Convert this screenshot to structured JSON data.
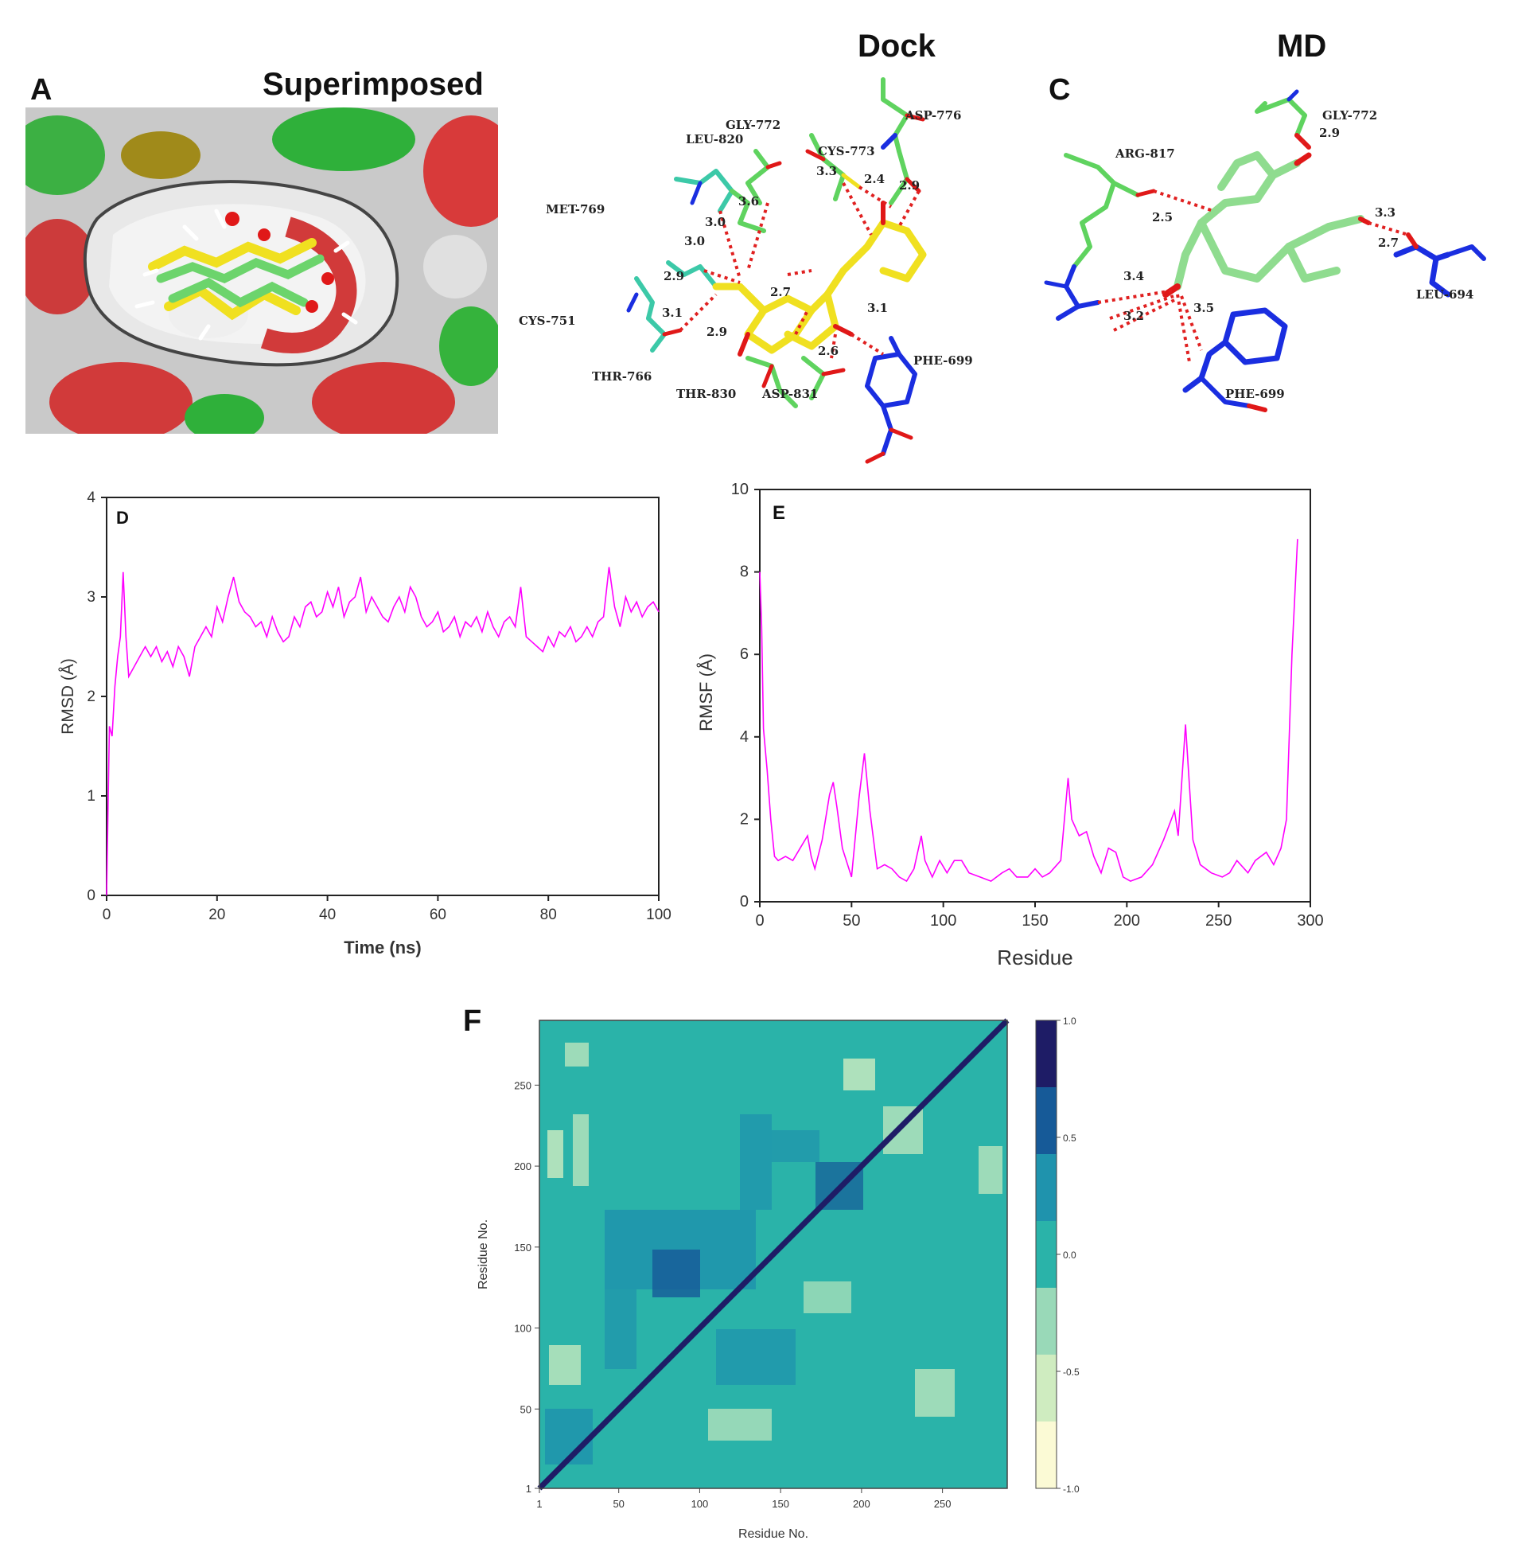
{
  "figure": {
    "panel_a": {
      "letter": "A",
      "title": "Superimposed"
    },
    "panel_b": {
      "title": "Dock",
      "residues": [
        "GLY-772",
        "LEU-820",
        "CYS-773",
        "ASP-776",
        "MET-769",
        "CYS-751",
        "THR-766",
        "THR-830",
        "ASP-831",
        "PHE-699"
      ],
      "distances": [
        "3.3",
        "2.4",
        "2.9",
        "3.6",
        "3.0",
        "3.0",
        "2.9",
        "3.1",
        "2.7",
        "2.9",
        "2.6",
        "3.1"
      ]
    },
    "panel_c": {
      "letter": "C",
      "title": "MD",
      "residues": [
        "GLY-772",
        "ARG-817",
        "LEU-694",
        "PHE-699"
      ],
      "distances": [
        "2.9",
        "2.5",
        "3.3",
        "2.7",
        "3.4",
        "3.2",
        "3.5"
      ]
    },
    "colors": {
      "carbon_green": "#5fd35f",
      "carbon_yellow": "#f0e020",
      "nitrogen": "#1a2ee0",
      "oxygen": "#e01818",
      "hbond": "#e02020",
      "trace": "#ff00ff"
    }
  },
  "chart_data": [
    {
      "panel": "D",
      "type": "line",
      "xlabel": "Time (ns)",
      "ylabel": "RMSD (Å)",
      "xlim": [
        0,
        100
      ],
      "ylim": [
        0,
        4
      ],
      "xticks": [
        "0",
        "20",
        "40",
        "60",
        "80",
        "100"
      ],
      "yticks": [
        "0",
        "1",
        "2",
        "3",
        "4"
      ],
      "color": "#ff00ff",
      "x": [
        0,
        0.5,
        1,
        1.5,
        2,
        2.5,
        3,
        3.5,
        4,
        5,
        6,
        7,
        8,
        9,
        10,
        11,
        12,
        13,
        14,
        15,
        16,
        17,
        18,
        19,
        20,
        21,
        22,
        23,
        24,
        25,
        26,
        27,
        28,
        29,
        30,
        31,
        32,
        33,
        34,
        35,
        36,
        37,
        38,
        39,
        40,
        41,
        42,
        43,
        44,
        45,
        46,
        47,
        48,
        49,
        50,
        51,
        52,
        53,
        54,
        55,
        56,
        57,
        58,
        59,
        60,
        61,
        62,
        63,
        64,
        65,
        66,
        67,
        68,
        69,
        70,
        71,
        72,
        73,
        74,
        75,
        76,
        77,
        78,
        79,
        80,
        81,
        82,
        83,
        84,
        85,
        86,
        87,
        88,
        89,
        90,
        91,
        92,
        93,
        94,
        95,
        96,
        97,
        98,
        99,
        100
      ],
      "y": [
        0,
        1.7,
        1.6,
        2.1,
        2.4,
        2.6,
        3.25,
        2.6,
        2.2,
        2.3,
        2.4,
        2.5,
        2.4,
        2.5,
        2.35,
        2.45,
        2.3,
        2.5,
        2.4,
        2.2,
        2.5,
        2.6,
        2.7,
        2.6,
        2.9,
        2.75,
        3.0,
        3.2,
        2.95,
        2.85,
        2.8,
        2.7,
        2.75,
        2.6,
        2.8,
        2.65,
        2.55,
        2.6,
        2.8,
        2.7,
        2.9,
        2.95,
        2.8,
        2.85,
        3.05,
        2.9,
        3.1,
        2.8,
        2.95,
        3.0,
        3.2,
        2.85,
        3.0,
        2.9,
        2.8,
        2.75,
        2.9,
        3.0,
        2.85,
        3.1,
        3.0,
        2.8,
        2.7,
        2.75,
        2.85,
        2.65,
        2.7,
        2.8,
        2.6,
        2.75,
        2.7,
        2.8,
        2.65,
        2.85,
        2.7,
        2.6,
        2.75,
        2.8,
        2.7,
        3.1,
        2.6,
        2.55,
        2.5,
        2.45,
        2.6,
        2.5,
        2.65,
        2.6,
        2.7,
        2.55,
        2.6,
        2.7,
        2.6,
        2.75,
        2.8,
        3.3,
        2.9,
        2.7,
        3.0,
        2.85,
        2.95,
        2.8,
        2.9,
        2.95,
        2.85
      ]
    },
    {
      "panel": "E",
      "type": "line",
      "xlabel": "Residue",
      "ylabel": "RMSF (Å)",
      "xlim": [
        0,
        300
      ],
      "ylim": [
        0,
        10
      ],
      "xticks": [
        "0",
        "50",
        "100",
        "150",
        "200",
        "250",
        "300"
      ],
      "yticks": [
        "0",
        "2",
        "4",
        "6",
        "8",
        "10"
      ],
      "color": "#ff00ff",
      "x": [
        0,
        1,
        2,
        4,
        6,
        8,
        10,
        14,
        18,
        22,
        26,
        28,
        30,
        34,
        38,
        40,
        42,
        45,
        50,
        54,
        57,
        60,
        64,
        68,
        72,
        76,
        80,
        84,
        88,
        90,
        94,
        98,
        102,
        106,
        110,
        114,
        120,
        126,
        132,
        136,
        140,
        146,
        150,
        154,
        158,
        164,
        168,
        170,
        174,
        178,
        182,
        186,
        190,
        194,
        198,
        202,
        208,
        214,
        220,
        226,
        228,
        232,
        236,
        240,
        246,
        252,
        256,
        260,
        266,
        270,
        276,
        280,
        284,
        287,
        290,
        293
      ],
      "y": [
        8.0,
        6.7,
        4.2,
        3.2,
        2.0,
        1.1,
        1.0,
        1.1,
        1.0,
        1.3,
        1.6,
        1.1,
        0.8,
        1.5,
        2.6,
        2.9,
        2.3,
        1.3,
        0.6,
        2.5,
        3.6,
        2.2,
        0.8,
        0.9,
        0.8,
        0.6,
        0.5,
        0.8,
        1.6,
        1.0,
        0.6,
        1.0,
        0.7,
        1.0,
        1.0,
        0.7,
        0.6,
        0.5,
        0.7,
        0.8,
        0.6,
        0.6,
        0.8,
        0.6,
        0.7,
        1.0,
        3.0,
        2.0,
        1.6,
        1.7,
        1.1,
        0.7,
        1.3,
        1.2,
        0.6,
        0.5,
        0.6,
        0.9,
        1.5,
        2.2,
        1.6,
        4.3,
        1.5,
        0.9,
        0.7,
        0.6,
        0.7,
        1.0,
        0.7,
        1.0,
        1.2,
        0.9,
        1.3,
        2.0,
        6.0,
        8.8
      ]
    },
    {
      "panel": "F",
      "type": "heatmap",
      "xlabel": "Residue No.",
      "ylabel": "Residue No.",
      "xticks": [
        "1",
        "50",
        "100",
        "150",
        "200",
        "250"
      ],
      "yticks": [
        "1",
        "50",
        "100",
        "150",
        "200",
        "250"
      ],
      "colorbar_ticks": [
        "1.0",
        "0.5",
        "0.0",
        "-0.5",
        "-1.0"
      ],
      "colorbar_colors": [
        "#1e1c66",
        "#165a98",
        "#1f93ad",
        "#2ab3a9",
        "#99d9b8",
        "#cfecc0",
        "#fbfad5"
      ],
      "note": ""
    }
  ]
}
